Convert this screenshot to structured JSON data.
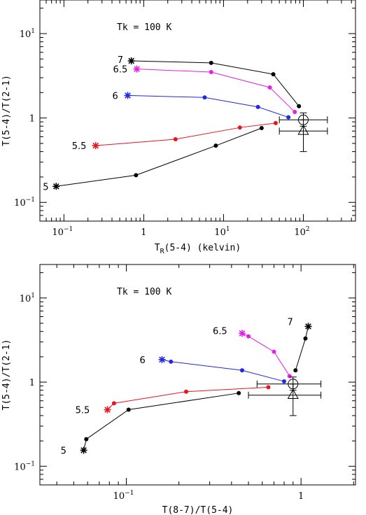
{
  "chart_data": [
    {
      "type": "line",
      "xscale": "log",
      "yscale": "log",
      "xlabel_main": "T",
      "xlabel_sub": "R",
      "xlabel_rest": "(5-4) (kelvin)",
      "ylabel": "T(5-4)/T(2-1)",
      "xlim": [
        0.05,
        450
      ],
      "ylim": [
        0.06,
        25
      ],
      "xticks": [
        {
          "v": 0.1,
          "m": "10",
          "e": "−1"
        },
        {
          "v": 1,
          "m": "1",
          "e": ""
        },
        {
          "v": 10,
          "m": "10",
          "e": "1"
        },
        {
          "v": 100,
          "m": "10",
          "e": "2"
        }
      ],
      "yticks": [
        {
          "v": 0.1,
          "m": "10",
          "e": "−1"
        },
        {
          "v": 1,
          "m": "1",
          "e": ""
        },
        {
          "v": 10,
          "m": "10",
          "e": "1"
        }
      ],
      "annotation": "Tk = 100 K",
      "grid": false,
      "series": [
        {
          "color": "#000000",
          "label": "5",
          "points": [
            [
              0.08,
              0.155
            ],
            [
              0.8,
              0.21
            ],
            [
              8,
              0.47
            ],
            [
              30,
              0.76
            ]
          ]
        },
        {
          "color": "#e8141e",
          "label": "5.5",
          "points": [
            [
              0.25,
              0.47
            ],
            [
              2.5,
              0.56
            ],
            [
              16,
              0.77
            ],
            [
              45,
              0.87
            ]
          ]
        },
        {
          "color": "#1e28e6",
          "label": "6",
          "points": [
            [
              0.63,
              1.85
            ],
            [
              5.8,
              1.75
            ],
            [
              27,
              1.35
            ],
            [
              65,
              1.02
            ]
          ]
        },
        {
          "color": "#e61ee6",
          "label": "6.5",
          "points": [
            [
              0.82,
              3.8
            ],
            [
              7,
              3.5
            ],
            [
              38,
              2.3
            ],
            [
              78,
              1.18
            ]
          ]
        },
        {
          "color": "#000000",
          "label": "7",
          "points": [
            [
              0.7,
              4.75
            ],
            [
              7,
              4.5
            ],
            [
              42,
              3.3
            ],
            [
              88,
              1.38
            ]
          ]
        }
      ],
      "observations": [
        {
          "marker": "circle",
          "x": 100,
          "y": 0.95,
          "xerr": [
            50,
            200
          ],
          "yerr": [
            0.8,
            1.15
          ]
        },
        {
          "marker": "triangle",
          "x": 100,
          "y": 0.7,
          "xerr": [
            50,
            200
          ],
          "yerr": [
            0.4,
            0.95
          ]
        }
      ]
    },
    {
      "type": "line",
      "xscale": "log",
      "yscale": "log",
      "xlabel": "T(8-7)/T(5-4)",
      "ylabel": "T(5-4)/T(2-1)",
      "xlim": [
        0.032,
        2.05
      ],
      "ylim": [
        0.06,
        25
      ],
      "xticks": [
        {
          "v": 0.1,
          "m": "10",
          "e": "−1"
        },
        {
          "v": 1,
          "m": "1",
          "e": ""
        }
      ],
      "yticks": [
        {
          "v": 0.1,
          "m": "10",
          "e": "−1"
        },
        {
          "v": 1,
          "m": "1",
          "e": ""
        },
        {
          "v": 10,
          "m": "10",
          "e": "1"
        }
      ],
      "annotation": "Tk = 100 K",
      "grid": false,
      "series": [
        {
          "color": "#000000",
          "label": "5",
          "points": [
            [
              0.057,
              0.155
            ],
            [
              0.059,
              0.21
            ],
            [
              0.103,
              0.47
            ],
            [
              0.44,
              0.74
            ]
          ]
        },
        {
          "color": "#e8141e",
          "label": "5.5",
          "points": [
            [
              0.078,
              0.47
            ],
            [
              0.085,
              0.56
            ],
            [
              0.22,
              0.77
            ],
            [
              0.65,
              0.87
            ]
          ]
        },
        {
          "color": "#1e28e6",
          "label": "6",
          "points": [
            [
              0.16,
              1.85
            ],
            [
              0.18,
              1.75
            ],
            [
              0.46,
              1.38
            ],
            [
              0.8,
              1.02
            ]
          ]
        },
        {
          "color": "#e61ee6",
          "label": "6.5",
          "points": [
            [
              0.46,
              3.8
            ],
            [
              0.5,
              3.5
            ],
            [
              0.7,
              2.3
            ],
            [
              0.86,
              1.18
            ]
          ]
        },
        {
          "color": "#000000",
          "label": "7",
          "points": [
            [
              1.1,
              4.6
            ],
            [
              1.06,
              3.3
            ],
            [
              0.93,
              1.38
            ]
          ]
        }
      ],
      "observations": [
        {
          "marker": "circle",
          "x": 0.9,
          "y": 0.95,
          "xerr": [
            0.56,
            1.3
          ],
          "yerr": [
            0.8,
            1.15
          ]
        },
        {
          "marker": "triangle",
          "x": 0.9,
          "y": 0.7,
          "xerr": [
            0.5,
            1.3
          ],
          "yerr": [
            0.4,
            0.95
          ]
        }
      ]
    }
  ]
}
